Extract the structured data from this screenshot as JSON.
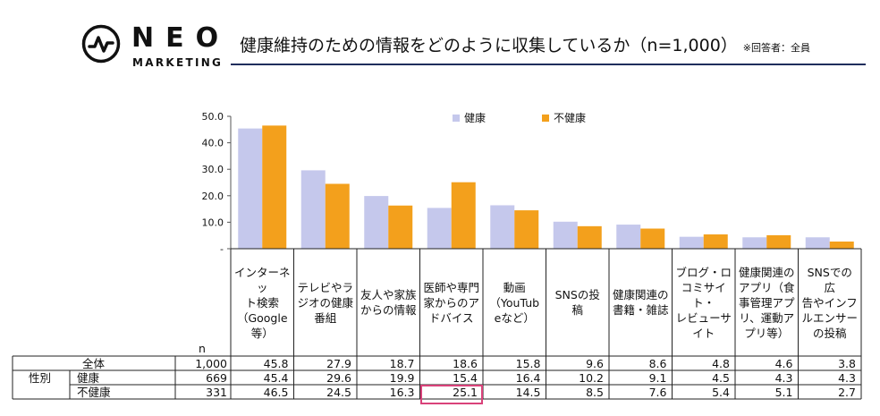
{
  "brand": {
    "name": "NEO",
    "sub": "MARKETING"
  },
  "header": {
    "title": "健康維持のための情報をどのように収集しているか（n=1,000）",
    "note": "※回答者：全員"
  },
  "colors": {
    "healthy": "#c5c8ec",
    "unhealthy": "#f3a01c",
    "highlight": "#d9427a",
    "title_rule": "#1f2d5c"
  },
  "chart_data": {
    "type": "bar",
    "title": "健康維持のための情報をどのように収集しているか（n=1,000）",
    "categories": [
      "インターネット検索（Google等）",
      "テレビやラジオの健康番組",
      "友人や家族からの情報",
      "医師や専門家からのアドバイス",
      "動画（YouTubeなど）",
      "SNSの投稿",
      "健康関連の書籍・雑誌",
      "ブログ・口コミサイト・レビューサイト",
      "健康関連のアプリ（食事管理アプリ、運動アプリ等）",
      "SNSでの広告やインフルエンサーの投稿"
    ],
    "series": [
      {
        "name": "健康",
        "values": [
          45.4,
          29.6,
          19.9,
          15.4,
          16.4,
          10.2,
          9.1,
          4.5,
          4.3,
          4.3
        ]
      },
      {
        "name": "不健康",
        "values": [
          46.5,
          24.5,
          16.3,
          25.1,
          14.5,
          8.5,
          7.6,
          5.4,
          5.1,
          2.7
        ]
      }
    ],
    "yticks": [
      "50.0",
      "40.0",
      "30.0",
      "20.0",
      "10.0",
      "-"
    ],
    "ylim": [
      0,
      50
    ],
    "legend_position": "top-center"
  },
  "table": {
    "n_header": "n",
    "category_lines": [
      [
        "インターネッ",
        "ト検索",
        "（Google",
        "等）"
      ],
      [
        "テレビやラ",
        "ジオの健康",
        "番組"
      ],
      [
        "友人や家族",
        "からの情報"
      ],
      [
        "医師や専門",
        "家からのア",
        "ドバイス"
      ],
      [
        "動画",
        "（YouTub",
        "eなど）"
      ],
      [
        "SNSの投稿"
      ],
      [
        "健康関連の",
        "書籍・雑誌"
      ],
      [
        "ブログ・ロ",
        "コミサイト・",
        "レビューサ",
        "イト"
      ],
      [
        "健康関連の",
        "アプリ（食",
        "事管理アプ",
        "リ、運動ア",
        "プリ等）"
      ],
      [
        "SNSでの広",
        "告やインフ",
        "ルエンサー",
        "の投稿"
      ]
    ],
    "rows": [
      {
        "group": "",
        "label": "全体",
        "n": "1,000",
        "values": [
          "45.8",
          "27.9",
          "18.7",
          "18.6",
          "15.8",
          "9.6",
          "8.6",
          "4.8",
          "4.6",
          "3.8"
        ]
      },
      {
        "group": "性別",
        "label": "健康",
        "n": "669",
        "values": [
          "45.4",
          "29.6",
          "19.9",
          "15.4",
          "16.4",
          "10.2",
          "9.1",
          "4.5",
          "4.3",
          "4.3"
        ]
      },
      {
        "group": "",
        "label": "不健康",
        "n": "331",
        "values": [
          "46.5",
          "24.5",
          "16.3",
          "25.1",
          "14.5",
          "8.5",
          "7.6",
          "5.4",
          "5.1",
          "2.7"
        ]
      }
    ],
    "highlight": {
      "row": 2,
      "col": 3
    }
  }
}
